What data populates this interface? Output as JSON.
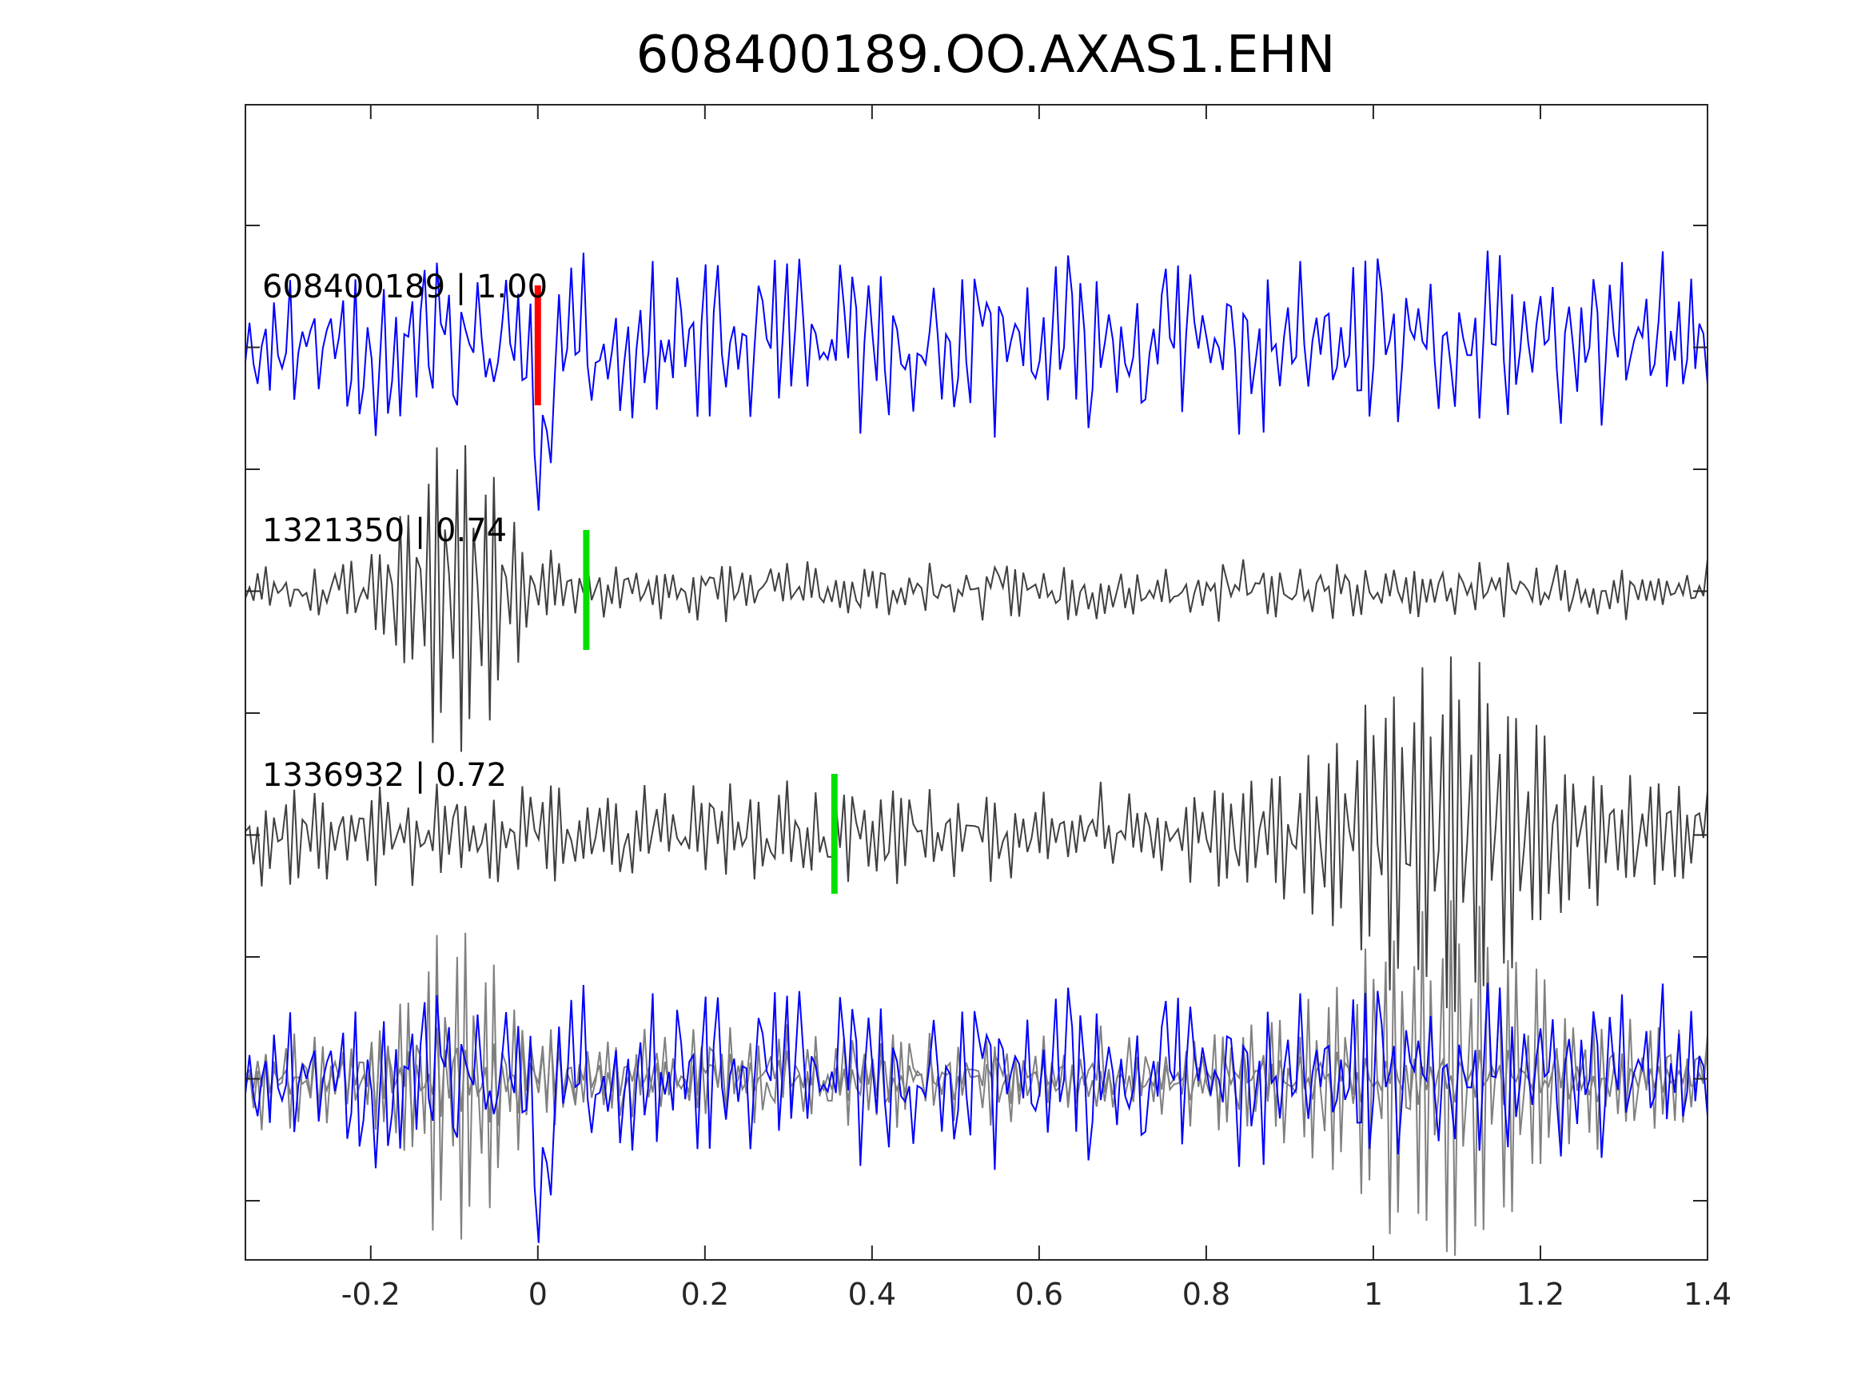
{
  "chart_data": {
    "type": "line",
    "title": "608400189.OO.AXAS1.EHN",
    "xlabel": "",
    "ylabel": "",
    "xlim": [
      -0.35,
      1.4
    ],
    "x_ticks": [
      -0.2,
      0,
      0.2,
      0.4,
      0.6,
      0.8,
      1,
      1.2,
      1.4
    ],
    "x_tick_labels": [
      "-0.2",
      "0",
      "0.2",
      "0.4",
      "0.6",
      "0.8",
      "1",
      "1.2",
      "1.4"
    ],
    "grid": false,
    "legend": "none",
    "y_tick_count": 9,
    "panels": [
      {
        "label": "608400189 | 1.00",
        "trace_color": "#0000ff",
        "pick_time": 0.0,
        "pick_color": "#ff0000",
        "envelope": "noise"
      },
      {
        "label": "1321350 | 0.74",
        "trace_color": "#404040",
        "pick_time": 0.058,
        "pick_color": "#00e000",
        "envelope": "burst-early"
      },
      {
        "label": "1336932 | 0.72",
        "trace_color": "#404040",
        "pick_time": 0.355,
        "pick_color": "#00e000",
        "envelope": "burst-late"
      }
    ],
    "overlay": {
      "series_colors": [
        "#0000ff",
        "#808080",
        "#808080"
      ]
    }
  }
}
